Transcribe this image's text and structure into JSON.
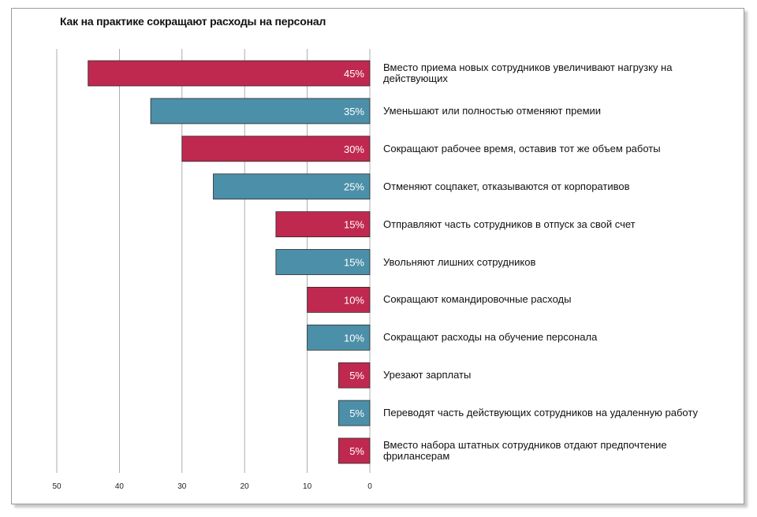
{
  "chart_data": {
    "type": "bar",
    "orientation": "horizontal",
    "title": "Как на практике сокращают расходы на персонал",
    "xlim": [
      0,
      50
    ],
    "x_direction": "reversed",
    "x_ticks": [
      "50",
      "40",
      "30",
      "20",
      "10",
      "0"
    ],
    "grid": "vertical",
    "colors": {
      "crimson": "#c0294f",
      "teal": "#4c8fa8"
    },
    "categories": [
      "Вместо приема новых сотрудников увеличивают нагрузку на действующих",
      "Уменьшают или полностью отменяют премии",
      "Сокращают рабочее время, оставив тот же объем работы",
      "Отменяют соцпакет, отказываются от корпоративов",
      "Отправляют часть сотрудников в отпуск за свой счет",
      "Увольняют лишних сотрудников",
      "Сокращают командировочные расходы",
      "Сокращают расходы на обучение персонала",
      "Урезают зарплаты",
      "Переводят часть действующих сотрудников на удаленную работу",
      "Вместо набора штатных сотрудников отдают предпочтение фрилансерам"
    ],
    "values": [
      45,
      35,
      30,
      25,
      15,
      15,
      10,
      10,
      5,
      5,
      5
    ],
    "value_labels": [
      "45%",
      "35%",
      "30%",
      "25%",
      "15%",
      "15%",
      "10%",
      "10%",
      "5%",
      "5%",
      "5%"
    ],
    "bar_colors": [
      "crimson",
      "teal",
      "crimson",
      "teal",
      "crimson",
      "teal",
      "crimson",
      "teal",
      "crimson",
      "teal",
      "crimson"
    ]
  }
}
